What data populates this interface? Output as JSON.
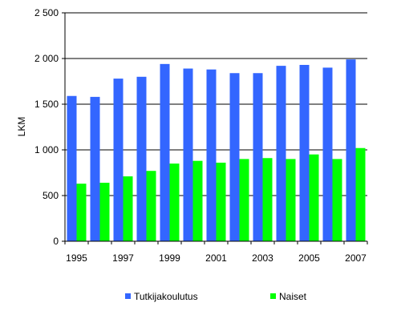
{
  "chart_data": {
    "type": "bar",
    "title": "",
    "xlabel": "",
    "ylabel": "LKM",
    "ylim": [
      0,
      2500
    ],
    "y_ticks": [
      0,
      500,
      1000,
      1500,
      2000,
      2500
    ],
    "y_tick_labels": [
      "0",
      "500",
      "1 000",
      "1 500",
      "2 000",
      "2 500"
    ],
    "categories": [
      "1995",
      "1996",
      "1997",
      "1998",
      "1999",
      "2000",
      "2001",
      "2002",
      "2003",
      "2004",
      "2005",
      "2006",
      "2007"
    ],
    "x_tick_labels": [
      "1995",
      "",
      "1997",
      "",
      "1999",
      "",
      "2001",
      "",
      "2003",
      "",
      "2005",
      "",
      "2007"
    ],
    "grid": true,
    "legend_position": "bottom",
    "series": [
      {
        "name": "Tutkijakoulutus",
        "color": "#3366ff",
        "values": [
          1590,
          1580,
          1780,
          1800,
          1940,
          1890,
          1880,
          1840,
          1840,
          1920,
          1930,
          1900,
          1990
        ]
      },
      {
        "name": "Naiset",
        "color": "#00ff00",
        "values": [
          630,
          640,
          710,
          770,
          850,
          880,
          860,
          900,
          910,
          900,
          950,
          900,
          1020
        ]
      }
    ]
  }
}
